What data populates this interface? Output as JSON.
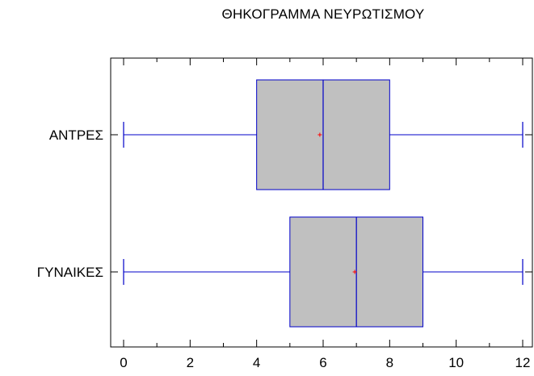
{
  "chart_data": {
    "type": "box",
    "title": "ΘΗΚΟΓΡΑΜΜΑ ΝΕΥΡΩΤΙΣΜΟΥ",
    "orientation": "horizontal",
    "xlim": [
      -0.4,
      12.3
    ],
    "x_ticks": [
      0,
      2,
      4,
      6,
      8,
      10,
      12
    ],
    "categories": [
      "ΑΝΤΡΕΣ",
      "ΓΥΝΑΙΚΕΣ"
    ],
    "series": [
      {
        "category": "ΑΝΤΡΕΣ",
        "min": 0,
        "q1": 4,
        "median": 6,
        "q3": 8,
        "max": 12,
        "mean": 5.9
      },
      {
        "category": "ΓΥΝΑΙΚΕΣ",
        "min": 0,
        "q1": 5,
        "median": 7,
        "q3": 9,
        "max": 12,
        "mean": 6.95
      }
    ],
    "colors": {
      "box_fill": "#c0c0c0",
      "box_stroke": "#0000c8",
      "mean_marker": "#ff0000",
      "axis": "#000000"
    },
    "grid": false,
    "legend": "none"
  }
}
